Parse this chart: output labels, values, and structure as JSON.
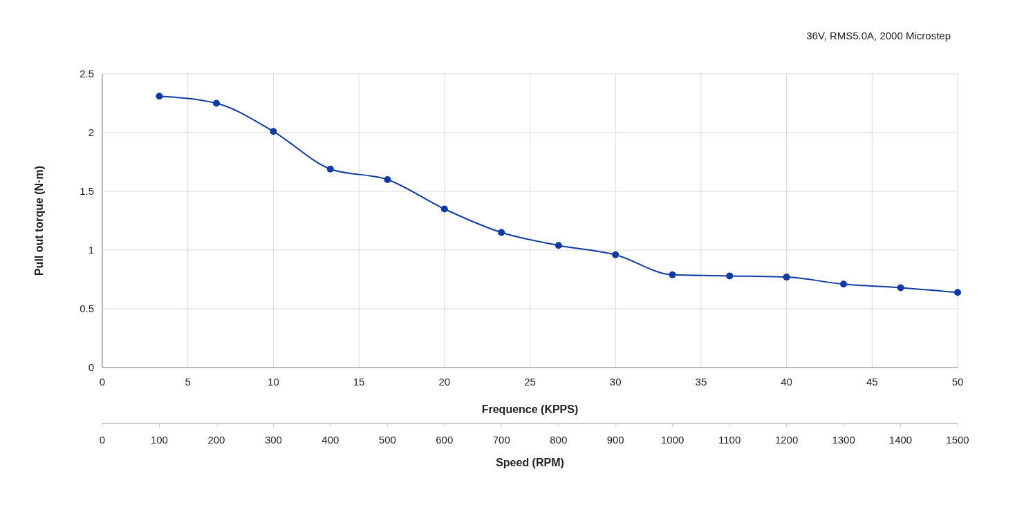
{
  "chart_data": {
    "type": "line",
    "title": "36V,  RMS5.0A,  2000 Microstep",
    "xlabel": "Frequence (KPPS)",
    "ylabel": "Pull out torque (N·m)",
    "x2label": "Speed (RPM)",
    "x": [
      3.33,
      6.67,
      10,
      13.33,
      16.67,
      20,
      23.33,
      26.67,
      30,
      33.33,
      36.67,
      40,
      43.33,
      46.67,
      50
    ],
    "series": [
      {
        "color": "#0d3ba5",
        "values": [
          2.31,
          2.25,
          2.01,
          1.69,
          1.6,
          1.35,
          1.15,
          1.04,
          0.96,
          0.79,
          0.78,
          0.77,
          0.71,
          0.68,
          0.64
        ]
      }
    ],
    "xlim": [
      0,
      50
    ],
    "xticks": [
      0,
      5,
      10,
      15,
      20,
      25,
      30,
      35,
      40,
      45,
      50
    ],
    "ylim": [
      0,
      2.5
    ],
    "yticks": [
      0,
      0.5,
      1,
      1.5,
      2,
      2.5
    ],
    "x2lim": [
      0,
      1500
    ],
    "x2ticks": [
      0,
      100,
      200,
      300,
      400,
      500,
      600,
      700,
      800,
      900,
      1000,
      1100,
      1200,
      1300,
      1400,
      1500
    ],
    "grid": true,
    "marker": "circle"
  }
}
